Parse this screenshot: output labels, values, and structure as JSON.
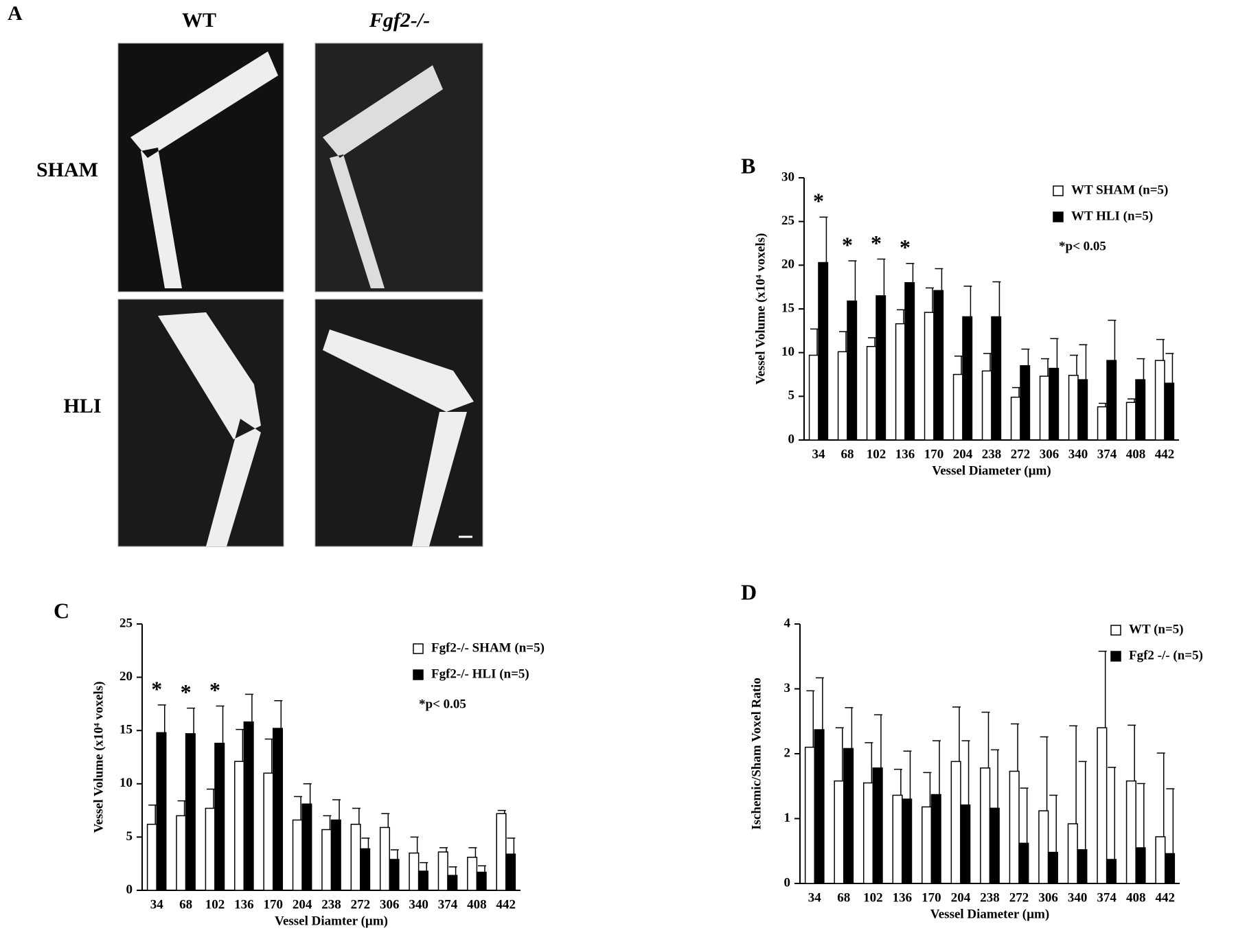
{
  "panel_a": {
    "label": "A",
    "columns": [
      "WT",
      "Fgf2-/-"
    ],
    "rows": [
      "SHAM",
      "HLI"
    ]
  },
  "chart_data": [
    {
      "type": "bar",
      "label": "B",
      "y_label": "Vessel Volume (x10⁴ voxels)",
      "x_label": "Vessel Diameter (µm)",
      "categories": [
        "34",
        "68",
        "102",
        "136",
        "170",
        "204",
        "238",
        "272",
        "306",
        "340",
        "374",
        "408",
        "442"
      ],
      "series": [
        {
          "name": "WT SHAM  (n=5)",
          "color": "#ffffff",
          "values": [
            9.7,
            10.1,
            10.7,
            13.3,
            14.6,
            7.5,
            7.9,
            4.9,
            7.3,
            7.4,
            3.8,
            4.3,
            9.1
          ],
          "errors": [
            3.0,
            2.3,
            1.0,
            1.6,
            2.8,
            2.1,
            2.0,
            1.1,
            2.0,
            2.3,
            0.4,
            0.4,
            2.4
          ]
        },
        {
          "name": "WT HLI  (n=5)",
          "color": "#000000",
          "values": [
            20.3,
            15.9,
            16.5,
            18.0,
            17.1,
            14.1,
            14.1,
            8.5,
            8.2,
            6.9,
            9.1,
            6.9,
            6.5
          ],
          "errors": [
            5.2,
            4.6,
            4.2,
            2.2,
            2.5,
            3.5,
            4.0,
            1.9,
            3.4,
            4.0,
            4.6,
            2.4,
            3.4
          ]
        }
      ],
      "significance_marker": "*",
      "significant": [
        "34",
        "68",
        "102",
        "136"
      ],
      "annotation": "*p< 0.05",
      "ylim": [
        0,
        30
      ],
      "yticks": [
        0,
        5,
        10,
        15,
        20,
        25,
        30
      ],
      "legend": "upper right"
    },
    {
      "type": "bar",
      "label": "C",
      "y_label": "Vessel Volume (x10⁴ voxels)",
      "x_label": "Vessel Diamter (µm)",
      "categories": [
        "34",
        "68",
        "102",
        "136",
        "170",
        "204",
        "238",
        "272",
        "306",
        "340",
        "374",
        "408",
        "442"
      ],
      "series": [
        {
          "name": "Fgf2-/- SHAM  (n=5)",
          "color": "#ffffff",
          "values": [
            6.2,
            7.0,
            7.7,
            12.1,
            11.0,
            6.6,
            5.7,
            6.2,
            5.9,
            3.5,
            3.6,
            3.1,
            7.2
          ],
          "errors": [
            1.8,
            1.4,
            1.8,
            3.0,
            3.2,
            2.2,
            1.3,
            1.5,
            1.3,
            1.5,
            0.4,
            0.9,
            0.3
          ]
        },
        {
          "name": "Fgf2-/- HLI  (n=5)",
          "color": "#000000",
          "values": [
            14.8,
            14.7,
            13.8,
            15.8,
            15.2,
            8.1,
            6.6,
            3.9,
            2.9,
            1.8,
            1.4,
            1.7,
            3.4
          ],
          "errors": [
            2.6,
            2.4,
            3.5,
            2.6,
            2.6,
            1.9,
            1.9,
            1.0,
            0.9,
            0.8,
            0.8,
            0.6,
            1.5
          ]
        }
      ],
      "significance_marker": "*",
      "significant": [
        "34",
        "68",
        "102"
      ],
      "annotation": "*p< 0.05",
      "ylim": [
        0,
        25
      ],
      "yticks": [
        0,
        5,
        10,
        15,
        20,
        25
      ],
      "legend": "upper right"
    },
    {
      "type": "bar",
      "label": "D",
      "y_label": "Ischemic/Sham Voxel Ratio",
      "x_label": "Vessel Diameter (µm)",
      "categories": [
        "34",
        "68",
        "102",
        "136",
        "170",
        "204",
        "238",
        "272",
        "306",
        "340",
        "374",
        "408",
        "442"
      ],
      "series": [
        {
          "name": "WT  (n=5)",
          "color": "#ffffff",
          "values": [
            2.1,
            1.58,
            1.55,
            1.36,
            1.18,
            1.88,
            1.78,
            1.73,
            1.12,
            0.92,
            2.4,
            1.58,
            0.72
          ],
          "errors": [
            0.87,
            0.82,
            0.62,
            0.4,
            0.53,
            0.84,
            0.86,
            0.73,
            1.14,
            1.51,
            1.18,
            0.86,
            1.29
          ]
        },
        {
          "name": "Fgf2 -/-  (n=5)",
          "color": "#000000",
          "values": [
            2.37,
            2.08,
            1.78,
            1.3,
            1.37,
            1.21,
            1.16,
            0.62,
            0.48,
            0.52,
            0.37,
            0.55,
            0.46
          ],
          "errors": [
            0.8,
            0.63,
            0.82,
            0.74,
            0.83,
            0.99,
            0.9,
            0.85,
            0.88,
            1.36,
            1.42,
            0.99,
            1.0
          ]
        }
      ],
      "ylim": [
        0,
        4
      ],
      "yticks": [
        0,
        1,
        2,
        3,
        4
      ],
      "legend": "upper right"
    }
  ]
}
